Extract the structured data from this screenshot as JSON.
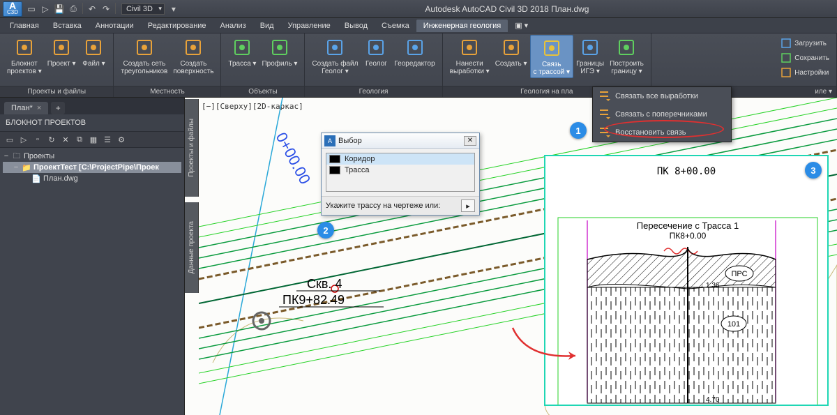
{
  "title": "Autodesk AutoCAD Civil 3D 2018    План.dwg",
  "logo_small": "C3D",
  "workspace": "Civil 3D",
  "menus": [
    "Главная",
    "Вставка",
    "Аннотации",
    "Редактирование",
    "Анализ",
    "Вид",
    "Управление",
    "Вывод",
    "Съемка",
    "Инженерная геология"
  ],
  "active_menu": 9,
  "ribbon": {
    "panels": [
      {
        "title": "Проекты и файлы",
        "buttons": [
          {
            "label": "Блокнот\nпроектов",
            "icon": "notebook",
            "dd": true,
            "color": "#e8a23a"
          },
          {
            "label": "Проект",
            "icon": "project",
            "dd": true,
            "color": "#e8a23a"
          },
          {
            "label": "Файл",
            "icon": "file",
            "dd": true,
            "color": "#e8a23a"
          }
        ]
      },
      {
        "title": "Местность",
        "buttons": [
          {
            "label": "Создать сеть\nтреугольников",
            "icon": "tin",
            "color": "#e8a23a"
          },
          {
            "label": "Создать\nповерхность",
            "icon": "surface",
            "color": "#e8a23a"
          }
        ]
      },
      {
        "title": "Объекты",
        "buttons": [
          {
            "label": "Трасса",
            "icon": "align",
            "dd": true,
            "color": "#5fcf5f"
          },
          {
            "label": "Профиль",
            "icon": "profile",
            "dd": true,
            "color": "#5fcf5f"
          }
        ]
      },
      {
        "title": "Геология",
        "buttons": [
          {
            "label": "Создать файл\nГеолог",
            "icon": "geofile",
            "dd": true,
            "color": "#5aa3e8"
          },
          {
            "label": "Геолог",
            "icon": "geolog",
            "color": "#5aa3e8"
          },
          {
            "label": "Георедактор",
            "icon": "geoedit",
            "color": "#5aa3e8"
          }
        ]
      },
      {
        "title": "Геология на пла",
        "buttons": [
          {
            "label": "Нанести\nвыработки",
            "icon": "bore",
            "dd": true,
            "color": "#e8a23a"
          },
          {
            "label": "Создать",
            "icon": "create",
            "dd": true,
            "color": "#e8a23a"
          },
          {
            "label": "Связь\nс трассой",
            "icon": "link",
            "dd": true,
            "active": true,
            "color": "#e8c23a"
          },
          {
            "label": "Границы\nИГЭ",
            "icon": "bounds",
            "dd": true,
            "color": "#5aa3e8"
          },
          {
            "label": "Построить\nграницу",
            "icon": "build",
            "dd": true,
            "color": "#5fcf5f"
          }
        ]
      }
    ],
    "right_rows": [
      {
        "icon": "load",
        "label": "Загрузить",
        "color": "#5aa3e8"
      },
      {
        "icon": "save",
        "label": "Сохранить",
        "color": "#5fcf5f"
      },
      {
        "icon": "settings",
        "label": "Настройки",
        "color": "#e8a23a"
      }
    ],
    "right_corner": "иле ▾"
  },
  "dropdown": [
    {
      "icon": "linkall",
      "label": "Связать все  выработки"
    },
    {
      "icon": "linkcross",
      "label": "Связать с поперечниками",
      "hl": true
    },
    {
      "icon": "restore",
      "label": "Восстановить связь"
    }
  ],
  "doc_tab": "План*",
  "left_panel": {
    "title": "БЛОКНОТ ПРОЕКТОВ",
    "tree": {
      "root": "Проекты",
      "project": "ПроектТест [C:\\ProjectPipe\\Проек",
      "file": "План.dwg"
    }
  },
  "side_tabs": [
    "Проекты и файлы",
    "Данные проекта"
  ],
  "viewport_label": "[−][Сверху][2D-каркас]",
  "station_text": "0+00.00",
  "borehole": {
    "name": "Скв. 4",
    "pk": "ПК9+82.49"
  },
  "dialog": {
    "title": "Выбор",
    "items": [
      {
        "label": "Коридор",
        "color": "#000000",
        "sel": true
      },
      {
        "label": "Трасса",
        "color": "#000000"
      }
    ],
    "footer": "Укажите трассу на чертеже или:"
  },
  "inset": {
    "station": "ПК 8+00.00",
    "cross_title": "Пересечение  с  Трасса  1",
    "cross_pk": "ПК8+0.00",
    "layer1": "ПРС",
    "layer1_h": "1.36",
    "layer2": "101",
    "layer2_h": "4.70"
  },
  "callouts": {
    "c1": "1",
    "c2": "2",
    "c3": "3"
  },
  "colors": {
    "accent": "#2b8ce6",
    "teal": "#1fd6b4",
    "red": "#e03030",
    "green_line": "#0a9b3e",
    "green_thick": "#086b2a",
    "cyan": "#2aa8d8",
    "tan": "#c8b878"
  }
}
